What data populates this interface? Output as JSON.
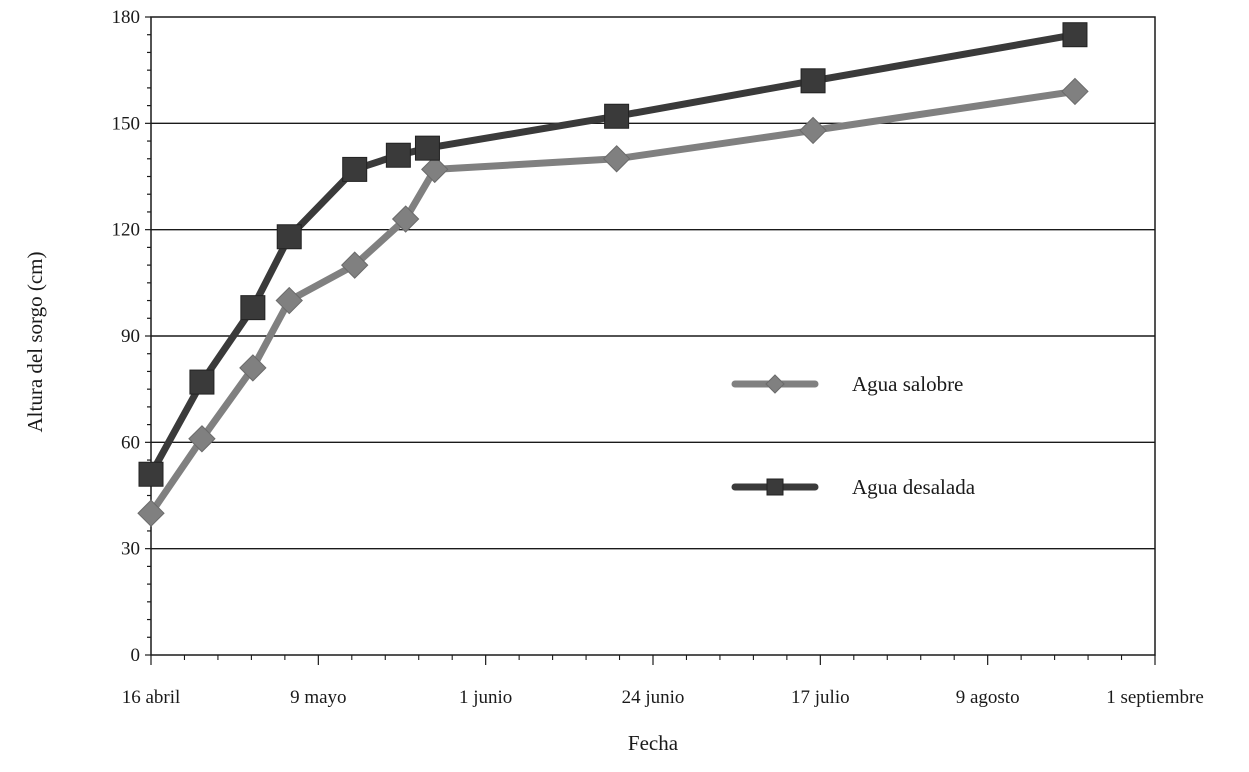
{
  "chart_data": {
    "type": "line",
    "xlabel": "Fecha",
    "ylabel": "Altura del sorgo (cm)",
    "ylim": [
      0,
      180
    ],
    "yticks": [
      0,
      30,
      60,
      90,
      120,
      150,
      180
    ],
    "y_minor_step": 5,
    "xlim": [
      "2013-04-16",
      "2013-09-01"
    ],
    "xticks": [
      {
        "date": "2013-04-16",
        "label": "16 abril"
      },
      {
        "date": "2013-05-09",
        "label": "9 mayo"
      },
      {
        "date": "2013-06-01",
        "label": "1 junio"
      },
      {
        "date": "2013-06-24",
        "label": "24 junio"
      },
      {
        "date": "2013-07-17",
        "label": "17 julio"
      },
      {
        "date": "2013-08-09",
        "label": "9 agosto"
      },
      {
        "date": "2013-09-01",
        "label": "1 septiembre"
      }
    ],
    "grid": "horizontal",
    "legend_position": "right-center",
    "series": [
      {
        "name": "Agua salobre",
        "marker": "diamond",
        "color": "#808080",
        "points": [
          {
            "x": "2013-04-16",
            "y": 40
          },
          {
            "x": "2013-04-23",
            "y": 61
          },
          {
            "x": "2013-04-30",
            "y": 81
          },
          {
            "x": "2013-05-05",
            "y": 100
          },
          {
            "x": "2013-05-14",
            "y": 110
          },
          {
            "x": "2013-05-21",
            "y": 123
          },
          {
            "x": "2013-05-25",
            "y": 137
          },
          {
            "x": "2013-06-19",
            "y": 140
          },
          {
            "x": "2013-07-16",
            "y": 148
          },
          {
            "x": "2013-08-21",
            "y": 159
          }
        ]
      },
      {
        "name": "Agua desalada",
        "marker": "square",
        "color": "#3a3a3a",
        "points": [
          {
            "x": "2013-04-16",
            "y": 51
          },
          {
            "x": "2013-04-23",
            "y": 77
          },
          {
            "x": "2013-04-30",
            "y": 98
          },
          {
            "x": "2013-05-05",
            "y": 118
          },
          {
            "x": "2013-05-14",
            "y": 137
          },
          {
            "x": "2013-05-20",
            "y": 141
          },
          {
            "x": "2013-05-24",
            "y": 143
          },
          {
            "x": "2013-06-19",
            "y": 152
          },
          {
            "x": "2013-07-16",
            "y": 162
          },
          {
            "x": "2013-08-21",
            "y": 175
          }
        ]
      }
    ]
  }
}
